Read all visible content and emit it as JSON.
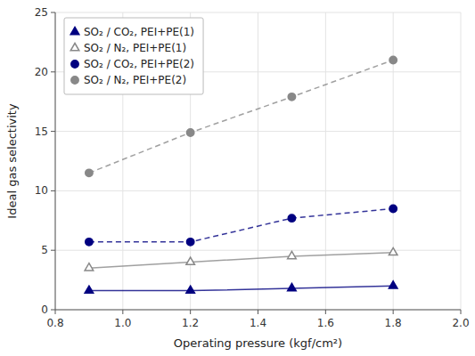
{
  "chart_data": {
    "type": "line",
    "x_label": "Operating pressure (kgf/cm²)",
    "y_label": "Ideal gas selectivity",
    "x": [
      0.9,
      1.2,
      1.5,
      1.8
    ],
    "series": [
      {
        "name": "SO₂ / CO₂, PEI+PE(1)",
        "color": "#000080",
        "marker": "triangle",
        "line_style": "solid",
        "values": [
          1.6,
          1.6,
          1.8,
          2.0
        ]
      },
      {
        "name": "SO₂ / N₂, PEI+PE(1)",
        "color": "#888888",
        "marker": "triangle-open",
        "line_style": "solid",
        "values": [
          3.5,
          4.0,
          4.5,
          4.8
        ]
      },
      {
        "name": "SO₂ / CO₂, PEI+PE(2)",
        "color": "#000080",
        "marker": "circle",
        "line_style": "dashed",
        "values": [
          5.7,
          5.7,
          7.7,
          8.5
        ]
      },
      {
        "name": "SO₂ / N₂, PEI+PE(2)",
        "color": "#888888",
        "marker": "circle",
        "line_style": "dashed",
        "values": [
          11.5,
          14.9,
          17.9,
          21.0
        ]
      }
    ],
    "xlim": [
      0.8,
      2.0
    ],
    "ylim": [
      0,
      25
    ],
    "xticks": [
      0.8,
      {
        "value": 1,
        "label": "1.0"
      },
      1.2,
      1.4,
      1.6,
      1.8,
      {
        "value": 2,
        "label": "2.0"
      }
    ],
    "yticks": [
      0,
      5,
      10,
      15,
      20,
      25
    ],
    "grid": true,
    "legend": "upper left"
  }
}
